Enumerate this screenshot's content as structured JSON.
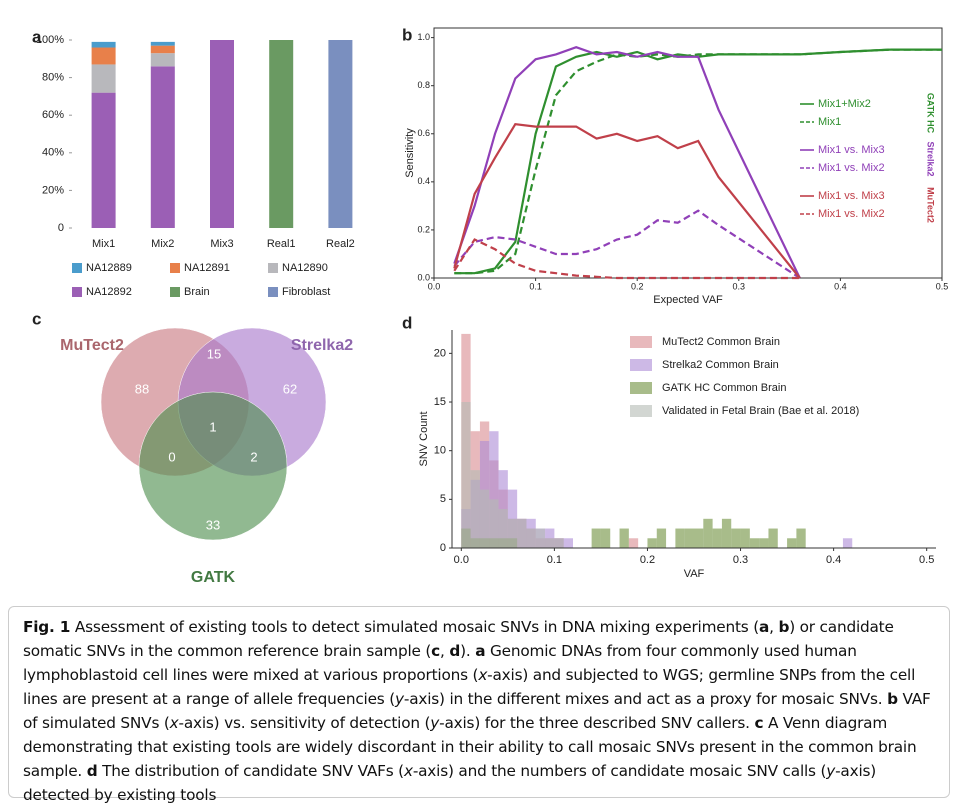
{
  "chart_data": [
    {
      "type": "stacked-bar",
      "panel_label": "a",
      "categories": [
        "Mix1",
        "Mix2",
        "Mix3",
        "Real1",
        "Real2"
      ],
      "series": [
        {
          "name": "NA12889",
          "color": "#4a9ccc",
          "values": [
            3,
            2,
            0,
            0,
            0
          ]
        },
        {
          "name": "NA12891",
          "color": "#e8804a",
          "values": [
            9,
            4,
            0,
            0,
            0
          ]
        },
        {
          "name": "NA12890",
          "color": "#b8b8bc",
          "values": [
            15,
            7,
            0,
            0,
            0
          ]
        },
        {
          "name": "NA12892",
          "color": "#9b5fb5",
          "values": [
            72,
            86,
            100,
            0,
            0
          ]
        },
        {
          "name": "Brain",
          "color": "#6a9a62",
          "values": [
            0,
            0,
            0,
            100,
            0
          ]
        },
        {
          "name": "Fibroblast",
          "color": "#7a8fbf",
          "values": [
            0,
            0,
            0,
            0,
            100
          ]
        }
      ],
      "ylim": [
        0,
        100
      ],
      "yticks": [
        0,
        {
          "value": 20,
          "label": "20%"
        },
        {
          "value": 40,
          "label": "40%"
        },
        {
          "value": 60,
          "label": "60%"
        },
        {
          "value": 80,
          "label": "80%"
        },
        {
          "value": 100,
          "label": "100%"
        }
      ]
    },
    {
      "type": "line",
      "panel_label": "b",
      "xlabel": "Expected VAF",
      "ylabel": "Sensitivity",
      "x": [
        0.02,
        0.04,
        0.06,
        0.08,
        0.1,
        0.12,
        0.14,
        0.16,
        0.18,
        0.2,
        0.22,
        0.24,
        0.26,
        0.28,
        0.36,
        0.4,
        0.45,
        0.5
      ],
      "groups": [
        {
          "name": "GATK HC",
          "color": "#2f8f2f",
          "series": [
            {
              "name": "Mix1+Mix2",
              "dash": false,
              "values": [
                0.02,
                0.02,
                0.04,
                0.15,
                0.6,
                0.88,
                0.92,
                0.94,
                0.92,
                0.94,
                0.91,
                0.93,
                0.92,
                0.93,
                0.93,
                0.94,
                0.95,
                0.95
              ]
            },
            {
              "name": "Mix1",
              "dash": true,
              "values": [
                0.02,
                0.02,
                0.03,
                0.1,
                0.45,
                0.76,
                0.86,
                0.9,
                0.93,
                0.92,
                0.93,
                0.92,
                0.93,
                0.93,
                0.93,
                0.94,
                0.95,
                0.95
              ]
            }
          ]
        },
        {
          "name": "Strelka2",
          "color": "#9040b8",
          "series": [
            {
              "name": "Mix1 vs. Mix3",
              "dash": false,
              "values": [
                0.06,
                0.3,
                0.6,
                0.83,
                0.91,
                0.93,
                0.96,
                0.93,
                0.94,
                0.92,
                0.94,
                0.92,
                0.92,
                0.7,
                0.0,
                null,
                null,
                null
              ]
            },
            {
              "name": "Mix1 vs. Mix2",
              "dash": true,
              "values": [
                0.05,
                0.15,
                0.17,
                0.16,
                0.13,
                0.1,
                0.1,
                0.12,
                0.16,
                0.18,
                0.24,
                0.23,
                0.28,
                0.22,
                0.0,
                null,
                null,
                null
              ]
            }
          ]
        },
        {
          "name": "MuTect2",
          "color": "#c0404a",
          "series": [
            {
              "name": "Mix1 vs. Mix3",
              "dash": false,
              "values": [
                0.04,
                0.35,
                0.5,
                0.64,
                0.63,
                0.63,
                0.63,
                0.58,
                0.6,
                0.57,
                0.59,
                0.54,
                0.57,
                0.42,
                0.0,
                null,
                null,
                null
              ]
            },
            {
              "name": "Mix1 vs. Mix2",
              "dash": true,
              "values": [
                0.03,
                0.16,
                0.12,
                0.06,
                0.03,
                0.02,
                0.01,
                0.005,
                0.0,
                0.0,
                0.0,
                0.0,
                0.0,
                0.0,
                0.0,
                null,
                null,
                null
              ]
            }
          ]
        }
      ],
      "xlim": [
        0,
        0.5
      ],
      "xticks": [
        {
          "value": 0,
          "label": "0.0"
        },
        0.1,
        0.2,
        0.3,
        0.4,
        0.5
      ],
      "ylim": [
        0,
        1.04
      ],
      "yticks": [
        {
          "value": 0,
          "label": "0.0"
        },
        0.2,
        0.4,
        0.6,
        0.8,
        {
          "value": 1,
          "label": "1.0"
        }
      ]
    },
    {
      "type": "venn",
      "panel_label": "c",
      "sets": [
        {
          "name": "MuTect2",
          "color": "#c87880"
        },
        {
          "name": "Strelka2",
          "color": "#a878cc"
        },
        {
          "name": "GATK",
          "color": "#4e8e4e"
        }
      ],
      "values": [
        88,
        62,
        33,
        15,
        0,
        2,
        1
      ]
    },
    {
      "type": "histogram",
      "panel_label": "d",
      "xlabel": "VAF",
      "ylabel": "SNV Count",
      "bins": [
        0,
        0.01,
        0.02,
        0.03,
        0.04,
        0.05,
        0.06,
        0.07,
        0.08,
        0.09,
        0.1,
        0.11,
        0.12,
        0.13,
        0.14,
        0.15,
        0.16,
        0.17,
        0.18,
        0.19,
        0.2,
        0.21,
        0.22,
        0.23,
        0.24,
        0.25,
        0.26,
        0.27,
        0.28,
        0.29,
        0.3,
        0.31,
        0.32,
        0.33,
        0.34,
        0.35,
        0.36,
        0.37,
        0.38,
        0.39,
        0.4,
        0.41,
        0.42
      ],
      "series": [
        {
          "name": "MuTect2 Common Brain",
          "color": "#d88a90",
          "values": [
            22,
            12,
            13,
            9,
            6,
            3,
            3,
            2,
            1,
            1,
            1,
            0,
            0,
            0,
            0,
            0,
            0,
            0,
            1,
            0,
            0,
            0,
            0,
            0,
            0,
            0,
            0,
            0,
            0,
            0,
            0,
            0,
            0,
            0,
            0,
            0,
            0,
            0,
            0,
            0,
            0,
            0
          ]
        },
        {
          "name": "Strelka2 Common Brain",
          "color": "#ab8ad6",
          "values": [
            4,
            7,
            11,
            12,
            8,
            6,
            3,
            3,
            2,
            2,
            1,
            1,
            0,
            0,
            0,
            0,
            0,
            0,
            0,
            0,
            0,
            0,
            0,
            0,
            0,
            0,
            0,
            0,
            0,
            0,
            0,
            0,
            0,
            0,
            0,
            0,
            0,
            0,
            0,
            0,
            0,
            1
          ]
        },
        {
          "name": "GATK HC Common Brain",
          "color": "#6e8f3c",
          "values": [
            2,
            1,
            1,
            1,
            1,
            1,
            0,
            0,
            0,
            0,
            0,
            0,
            0,
            0,
            2,
            2,
            0,
            2,
            0,
            0,
            1,
            2,
            0,
            2,
            2,
            2,
            3,
            2,
            3,
            2,
            2,
            1,
            1,
            2,
            0,
            1,
            2,
            0,
            0,
            0,
            0,
            0
          ]
        },
        {
          "name": "Validated in Fetal Brain (Bae et al. 2018)",
          "color": "#b4bab4",
          "values": [
            15,
            8,
            6,
            5,
            4,
            3,
            3,
            2,
            2,
            1,
            1,
            0,
            0,
            0,
            0,
            0,
            0,
            0,
            0,
            0,
            0,
            0,
            0,
            0,
            0,
            0,
            0,
            0,
            0,
            0,
            0,
            0,
            0,
            0,
            0,
            0,
            0,
            0,
            0,
            0,
            0,
            0
          ]
        }
      ],
      "xlim": [
        -0.01,
        0.51
      ],
      "xticks": [
        {
          "value": 0,
          "label": "0.0"
        },
        0.1,
        0.2,
        0.3,
        0.4,
        0.5
      ],
      "ylim": [
        0,
        22.4
      ],
      "yticks": [
        0,
        5,
        10,
        15,
        20
      ]
    }
  ],
  "caption": {
    "runs": [
      {
        "text": "Fig. 1",
        "style": "b"
      },
      {
        "text": " Assessment of existing tools to detect simulated mosaic SNVs in DNA mixing experiments ("
      },
      {
        "text": "a",
        "style": "b"
      },
      {
        "text": ", "
      },
      {
        "text": "b",
        "style": "b"
      },
      {
        "text": ") or candidate somatic SNVs in the common reference brain sample ("
      },
      {
        "text": "c",
        "style": "b"
      },
      {
        "text": ", "
      },
      {
        "text": "d",
        "style": "b"
      },
      {
        "text": "). "
      },
      {
        "text": "a",
        "style": "b"
      },
      {
        "text": " Genomic DNAs from four commonly used human lymphoblastoid cell lines were mixed at various proportions ("
      },
      {
        "text": "x",
        "style": "i"
      },
      {
        "text": "-axis) and subjected to WGS; germline SNPs from the cell lines are present at a range of allele frequencies ("
      },
      {
        "text": "y",
        "style": "i"
      },
      {
        "text": "-axis) in the different mixes and act as a proxy for mosaic SNVs. "
      },
      {
        "text": "b",
        "style": "b"
      },
      {
        "text": " VAF of simulated SNVs ("
      },
      {
        "text": "x",
        "style": "i"
      },
      {
        "text": "-axis) vs. sensitivity of detection ("
      },
      {
        "text": "y",
        "style": "i"
      },
      {
        "text": "-axis) for the three described SNV callers. "
      },
      {
        "text": "c",
        "style": "b"
      },
      {
        "text": " A Venn diagram demonstrating that existing tools are widely discordant in their ability to call mosaic SNVs present in the common brain sample. "
      },
      {
        "text": "d",
        "style": "b"
      },
      {
        "text": " The distribution of candidate SNV VAFs ("
      },
      {
        "text": "x",
        "style": "i"
      },
      {
        "text": "-axis) and the numbers of candidate mosaic SNV calls ("
      },
      {
        "text": "y",
        "style": "i"
      },
      {
        "text": "-axis) detected by existing tools"
      }
    ]
  }
}
